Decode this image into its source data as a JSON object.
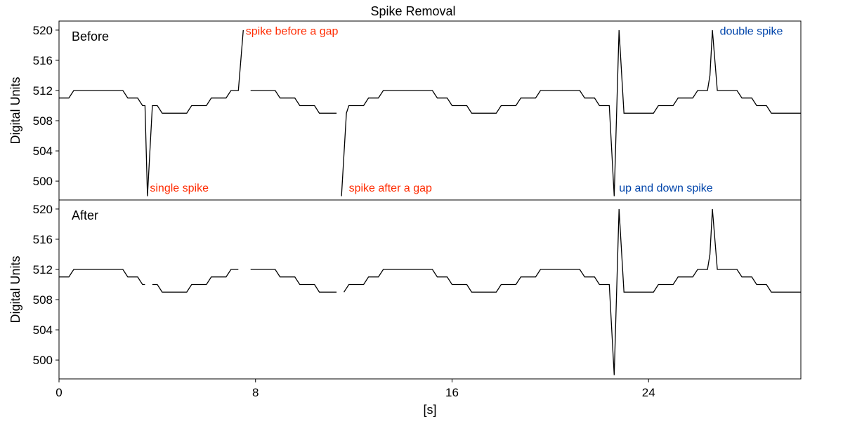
{
  "chart_data": {
    "type": "line",
    "title": "Spike Removal",
    "xlabel": "[s]",
    "ylabel": "Digital Units",
    "xlim": [
      0,
      30.2
    ],
    "ylim": [
      497.5,
      521.2
    ],
    "x_ticks": [
      0,
      8,
      16,
      24
    ],
    "y_ticks": [
      500,
      504,
      508,
      512,
      516,
      520
    ],
    "grid": false,
    "colors": {
      "line": "#000000",
      "red_annotation": "#ff2a00",
      "blue_annotation": "#0044aa"
    },
    "panels": [
      {
        "label": "Before",
        "segments": [
          [
            [
              0,
              511
            ],
            [
              0.4,
              511
            ],
            [
              0.6,
              512
            ],
            [
              2.6,
              512
            ],
            [
              2.8,
              511
            ],
            [
              3.2,
              511
            ],
            [
              3.4,
              510
            ],
            [
              3.5,
              510
            ],
            [
              3.6,
              498
            ],
            [
              3.8,
              510
            ],
            [
              4.0,
              510
            ],
            [
              4.2,
              509
            ],
            [
              5.2,
              509
            ],
            [
              5.4,
              510
            ],
            [
              6.0,
              510
            ],
            [
              6.2,
              511
            ],
            [
              6.8,
              511
            ],
            [
              7.0,
              512
            ],
            [
              7.3,
              512
            ],
            [
              7.5,
              520
            ]
          ],
          [
            [
              7.8,
              512
            ],
            [
              8.8,
              512
            ],
            [
              9.0,
              511
            ],
            [
              9.6,
              511
            ],
            [
              9.8,
              510
            ],
            [
              10.4,
              510
            ],
            [
              10.6,
              509
            ],
            [
              11.3,
              509
            ]
          ],
          [
            [
              11.5,
              498
            ],
            [
              11.7,
              509
            ],
            [
              11.8,
              510
            ],
            [
              12.4,
              510
            ],
            [
              12.6,
              511
            ],
            [
              13.0,
              511
            ],
            [
              13.2,
              512
            ],
            [
              15.2,
              512
            ],
            [
              15.4,
              511
            ],
            [
              15.8,
              511
            ],
            [
              16.0,
              510
            ],
            [
              16.6,
              510
            ],
            [
              16.8,
              509
            ],
            [
              17.8,
              509
            ],
            [
              18.0,
              510
            ],
            [
              18.6,
              510
            ],
            [
              18.8,
              511
            ],
            [
              19.4,
              511
            ],
            [
              19.6,
              512
            ],
            [
              21.2,
              512
            ],
            [
              21.4,
              511
            ],
            [
              21.8,
              511
            ],
            [
              22.0,
              510
            ],
            [
              22.4,
              510
            ],
            [
              22.6,
              498
            ],
            [
              22.8,
              520
            ],
            [
              23.0,
              509
            ],
            [
              24.2,
              509
            ],
            [
              24.4,
              510
            ],
            [
              25.0,
              510
            ],
            [
              25.2,
              511
            ],
            [
              25.8,
              511
            ],
            [
              26.0,
              512
            ],
            [
              26.4,
              512
            ],
            [
              26.5,
              514
            ],
            [
              26.6,
              520
            ],
            [
              26.8,
              512
            ],
            [
              27.6,
              512
            ],
            [
              27.8,
              511
            ],
            [
              28.2,
              511
            ],
            [
              28.4,
              510
            ],
            [
              28.8,
              510
            ],
            [
              29.0,
              509
            ],
            [
              30.2,
              509
            ]
          ]
        ],
        "annotations": [
          {
            "text": "single spike",
            "x": 3.7,
            "y": 498.6,
            "color": "red",
            "anchor": "start"
          },
          {
            "text": "spike before a gap",
            "x": 7.6,
            "y": 519.4,
            "color": "red",
            "anchor": "start"
          },
          {
            "text": "spike after a gap",
            "x": 11.8,
            "y": 498.6,
            "color": "red",
            "anchor": "start"
          },
          {
            "text": "up and down spike",
            "x": 22.8,
            "y": 498.6,
            "color": "blue",
            "anchor": "start"
          },
          {
            "text": "double spike",
            "x": 26.9,
            "y": 519.4,
            "color": "blue",
            "anchor": "start"
          }
        ]
      },
      {
        "label": "After",
        "segments": [
          [
            [
              0,
              511
            ],
            [
              0.4,
              511
            ],
            [
              0.6,
              512
            ],
            [
              2.6,
              512
            ],
            [
              2.8,
              511
            ],
            [
              3.2,
              511
            ],
            [
              3.4,
              510
            ],
            [
              3.5,
              510
            ]
          ],
          [
            [
              3.8,
              510
            ],
            [
              4.0,
              510
            ],
            [
              4.2,
              509
            ],
            [
              5.2,
              509
            ],
            [
              5.4,
              510
            ],
            [
              6.0,
              510
            ],
            [
              6.2,
              511
            ],
            [
              6.8,
              511
            ],
            [
              7.0,
              512
            ],
            [
              7.3,
              512
            ]
          ],
          [
            [
              7.8,
              512
            ],
            [
              8.8,
              512
            ],
            [
              9.0,
              511
            ],
            [
              9.6,
              511
            ],
            [
              9.8,
              510
            ],
            [
              10.4,
              510
            ],
            [
              10.6,
              509
            ],
            [
              11.3,
              509
            ]
          ],
          [
            [
              11.6,
              509
            ],
            [
              11.8,
              510
            ],
            [
              12.4,
              510
            ],
            [
              12.6,
              511
            ],
            [
              13.0,
              511
            ],
            [
              13.2,
              512
            ],
            [
              15.2,
              512
            ],
            [
              15.4,
              511
            ],
            [
              15.8,
              511
            ],
            [
              16.0,
              510
            ],
            [
              16.6,
              510
            ],
            [
              16.8,
              509
            ],
            [
              17.8,
              509
            ],
            [
              18.0,
              510
            ],
            [
              18.6,
              510
            ],
            [
              18.8,
              511
            ],
            [
              19.4,
              511
            ],
            [
              19.6,
              512
            ],
            [
              21.2,
              512
            ],
            [
              21.4,
              511
            ],
            [
              21.8,
              511
            ],
            [
              22.0,
              510
            ],
            [
              22.4,
              510
            ],
            [
              22.6,
              498
            ],
            [
              22.8,
              520
            ],
            [
              23.0,
              509
            ],
            [
              24.2,
              509
            ],
            [
              24.4,
              510
            ],
            [
              25.0,
              510
            ],
            [
              25.2,
              511
            ],
            [
              25.8,
              511
            ],
            [
              26.0,
              512
            ],
            [
              26.4,
              512
            ],
            [
              26.5,
              514
            ],
            [
              26.6,
              520
            ],
            [
              26.8,
              512
            ],
            [
              27.6,
              512
            ],
            [
              27.8,
              511
            ],
            [
              28.2,
              511
            ],
            [
              28.4,
              510
            ],
            [
              28.8,
              510
            ],
            [
              29.0,
              509
            ],
            [
              30.2,
              509
            ]
          ]
        ],
        "annotations": []
      }
    ]
  }
}
